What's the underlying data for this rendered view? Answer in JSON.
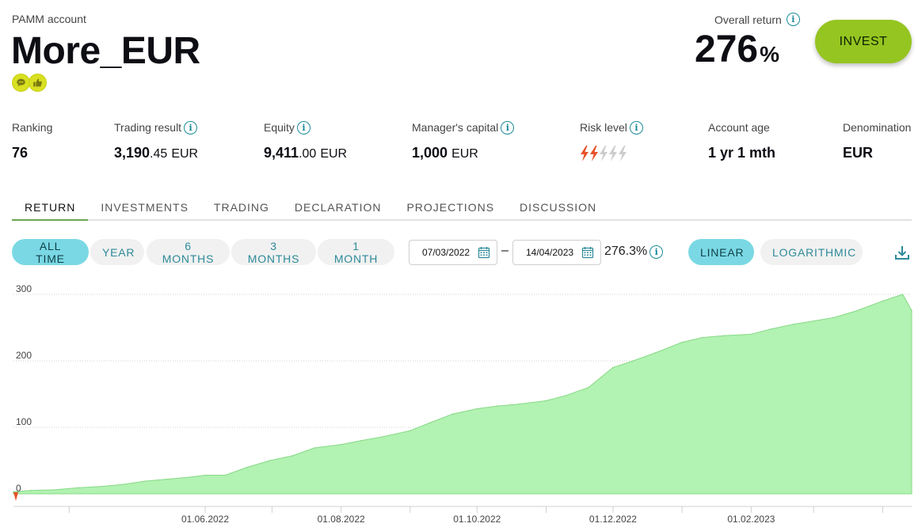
{
  "account": {
    "label": "PAMM account",
    "name": "More_EUR",
    "badges": [
      "chat-bubble-icon",
      "thumbs-up-icon"
    ]
  },
  "overall_return": {
    "label": "Overall return",
    "value": "276",
    "unit": "%"
  },
  "invest_button": "INVEST",
  "stats": {
    "ranking": {
      "label": "Ranking",
      "value": "76"
    },
    "trading_result": {
      "label": "Trading result",
      "int": "3,190",
      "dec": ".45",
      "cur": "EUR"
    },
    "equity": {
      "label": "Equity",
      "int": "9,411",
      "dec": ".00",
      "cur": "EUR"
    },
    "managers_capital": {
      "label": "Manager's capital",
      "int": "1,000",
      "cur": "EUR"
    },
    "risk_level": {
      "label": "Risk level",
      "level": 2,
      "max": 5
    },
    "account_age": {
      "label": "Account age",
      "value": "1 yr 1 mth"
    },
    "denomination": {
      "label": "Denomination",
      "value": "EUR"
    }
  },
  "tabs": [
    "RETURN",
    "INVESTMENTS",
    "TRADING",
    "DECLARATION",
    "PROJECTIONS",
    "DISCUSSION"
  ],
  "active_tab": "RETURN",
  "periods": [
    "ALL TIME",
    "YEAR",
    "6 MONTHS",
    "3 MONTHS",
    "1 MONTH"
  ],
  "active_period": "ALL TIME",
  "date_from": "07/03/2022",
  "date_to": "14/04/2023",
  "date_separator": "–",
  "range_return": "276.3%",
  "scales": [
    "LINEAR",
    "LOGARITHMIC"
  ],
  "active_scale": "LINEAR",
  "colors": {
    "accent": "#95c521",
    "teal": "#2d8a99",
    "fill": "#b2f2b2",
    "stroke": "#86d986",
    "pill_on": "#7ad8e4"
  },
  "chart_data": {
    "type": "area",
    "ylim": [
      0,
      300
    ],
    "y_ticks": [
      "300",
      "200",
      "100",
      "0"
    ],
    "x_ticks": [
      "01.06.2022",
      "01.08.2022",
      "01.10.2022",
      "01.12.2022",
      "01.02.2023"
    ],
    "grid": true,
    "x": [
      "2022-03-07",
      "2022-03-15",
      "2022-03-25",
      "2022-04-05",
      "2022-04-15",
      "2022-04-25",
      "2022-05-05",
      "2022-05-15",
      "2022-05-25",
      "2022-06-01",
      "2022-06-10",
      "2022-06-20",
      "2022-06-30",
      "2022-07-10",
      "2022-07-20",
      "2022-08-01",
      "2022-08-10",
      "2022-08-20",
      "2022-09-01",
      "2022-09-10",
      "2022-09-20",
      "2022-10-01",
      "2022-10-10",
      "2022-10-20",
      "2022-11-01",
      "2022-11-10",
      "2022-11-20",
      "2022-12-01",
      "2022-12-10",
      "2022-12-20",
      "2023-01-01",
      "2023-01-10",
      "2023-01-20",
      "2023-02-01",
      "2023-02-10",
      "2023-02-20",
      "2023-03-01",
      "2023-03-10",
      "2023-03-20",
      "2023-04-01",
      "2023-04-10",
      "2023-04-14"
    ],
    "values": [
      3,
      5,
      6,
      9,
      11,
      14,
      19,
      22,
      25,
      28,
      28,
      40,
      50,
      57,
      69,
      74,
      80,
      86,
      95,
      107,
      120,
      128,
      132,
      135,
      140,
      148,
      160,
      190,
      200,
      212,
      228,
      235,
      238,
      240,
      248,
      255,
      260,
      265,
      275,
      290,
      300,
      276
    ]
  }
}
